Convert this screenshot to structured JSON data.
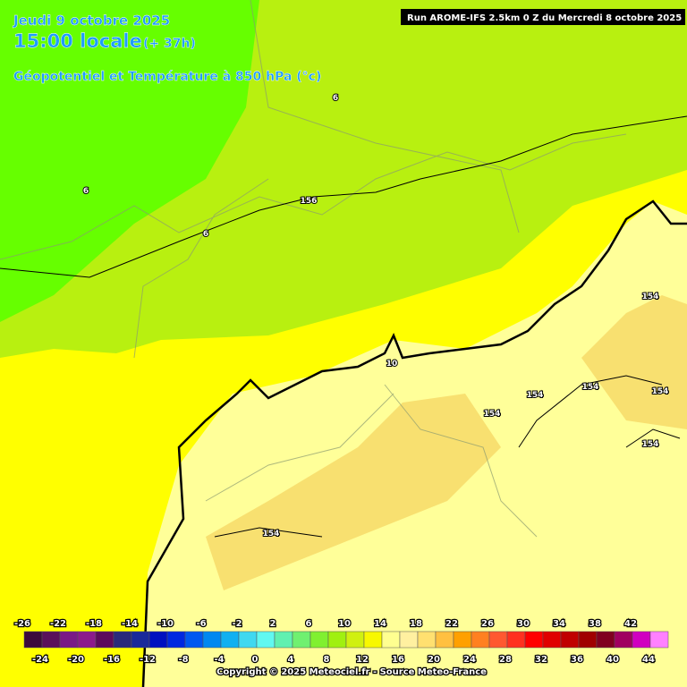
{
  "header": {
    "date": "Jeudi 9 octobre 2025",
    "time": "15:00 locale",
    "lead": "(+ 37h)",
    "field": "Géopotentiel et Température à 850 hPa (°c)",
    "run": "Run AROME-IFS 2.5km 0 Z du Mercredi 8 octobre 2025"
  },
  "map": {
    "contour_labels": [
      "6",
      "6",
      "6",
      "156",
      "10",
      "154",
      "154",
      "154",
      "154",
      "154",
      "154",
      "154"
    ]
  },
  "legend": {
    "colors": [
      "#3c0a3c",
      "#5a105a",
      "#7a1a86",
      "#8c1a8c",
      "#5c0a5c",
      "#2a2a7a",
      "#1a2a9a",
      "#0010c0",
      "#0028e0",
      "#0058f0",
      "#0088f0",
      "#10b0f0",
      "#40d8f0",
      "#60f8f0",
      "#60f0b0",
      "#70f070",
      "#80f030",
      "#a0f010",
      "#d0f010",
      "#f8f800",
      "#ffff90",
      "#fff0a0",
      "#ffe070",
      "#ffc040",
      "#ffa000",
      "#ff8020",
      "#ff5830",
      "#ff3020",
      "#ff0000",
      "#e00000",
      "#c00000",
      "#a00000",
      "#800020",
      "#a00060",
      "#d000c0",
      "#ff80ff"
    ],
    "top_labels": [
      -26,
      -22,
      -18,
      -14,
      -10,
      -6,
      -2,
      2,
      6,
      10,
      14,
      18,
      22,
      26,
      30,
      34,
      38,
      42
    ],
    "bottom_labels": [
      -24,
      -20,
      -16,
      -12,
      -8,
      -4,
      0,
      4,
      8,
      12,
      16,
      20,
      24,
      28,
      32,
      36,
      40,
      44
    ]
  },
  "footer": {
    "copyright": "Copyright © 2025 Meteociel.fr - Source Meteo-France"
  }
}
